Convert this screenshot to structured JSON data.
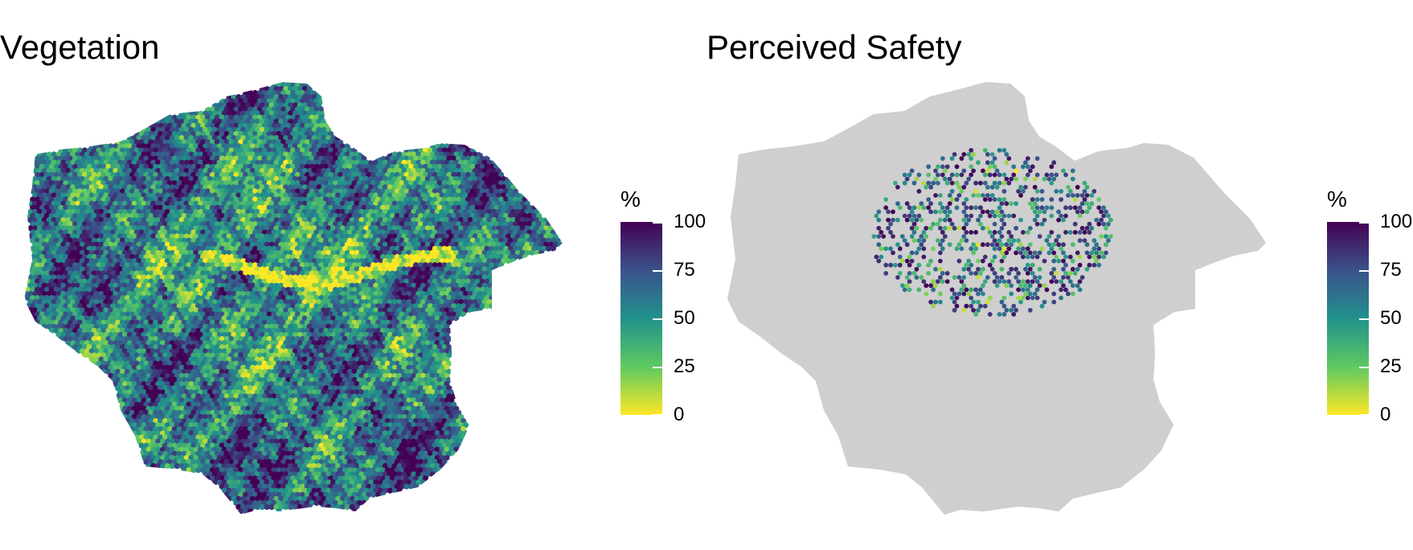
{
  "maps": [
    {
      "title": "Vegetation",
      "fill_mode": "full",
      "region_fill": null,
      "sample_area": null,
      "legend": {
        "title": "%",
        "ticks": [
          "100",
          "75",
          "50",
          "25",
          "0"
        ]
      }
    },
    {
      "title": "Perceived Safety",
      "fill_mode": "sampled",
      "region_fill": "#d3d3d3",
      "sample_area": "central",
      "legend": {
        "title": "%",
        "ticks": [
          "100",
          "75",
          "50",
          "25",
          "0"
        ]
      }
    }
  ],
  "colors": {
    "scale": [
      "#440154",
      "#3b528b",
      "#21918c",
      "#5ec962",
      "#fde725"
    ],
    "background": "#ffffff",
    "no_data": "#d3d3d3"
  }
}
